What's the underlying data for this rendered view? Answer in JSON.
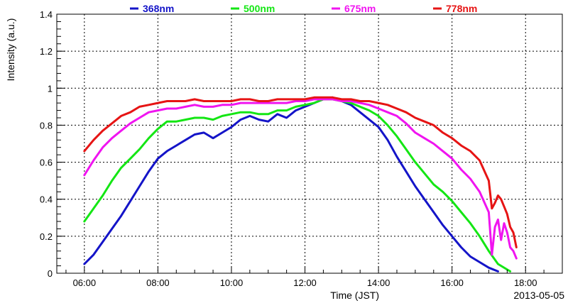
{
  "chart_data": {
    "type": "line",
    "xlabel": "Time (JST)",
    "ylabel": "Intensity (a.u.)",
    "date_label": "2013-05-05",
    "xlim": [
      "05:15",
      "19:00"
    ],
    "ylim": [
      0,
      1.4
    ],
    "x_ticks": [
      "06:00",
      "08:00",
      "10:00",
      "12:00",
      "14:00",
      "16:00",
      "18:00"
    ],
    "y_ticks": [
      "0",
      "0.2",
      "0.4",
      "0.6",
      "0.8",
      "1",
      "1.2",
      "1.4"
    ],
    "grid": true,
    "legend_position": "top",
    "series": [
      {
        "name": "368nm",
        "color": "#1414c8",
        "points": [
          [
            "06:00",
            0.05
          ],
          [
            "06:15",
            0.1
          ],
          [
            "06:30",
            0.17
          ],
          [
            "06:45",
            0.24
          ],
          [
            "07:00",
            0.31
          ],
          [
            "07:15",
            0.39
          ],
          [
            "07:30",
            0.47
          ],
          [
            "07:45",
            0.55
          ],
          [
            "08:00",
            0.62
          ],
          [
            "08:15",
            0.66
          ],
          [
            "08:30",
            0.69
          ],
          [
            "08:45",
            0.72
          ],
          [
            "09:00",
            0.75
          ],
          [
            "09:15",
            0.76
          ],
          [
            "09:30",
            0.73
          ],
          [
            "09:45",
            0.76
          ],
          [
            "10:00",
            0.79
          ],
          [
            "10:15",
            0.83
          ],
          [
            "10:30",
            0.85
          ],
          [
            "10:45",
            0.83
          ],
          [
            "11:00",
            0.82
          ],
          [
            "11:15",
            0.86
          ],
          [
            "11:30",
            0.84
          ],
          [
            "11:45",
            0.88
          ],
          [
            "12:00",
            0.9
          ],
          [
            "12:15",
            0.92
          ],
          [
            "12:30",
            0.94
          ],
          [
            "12:45",
            0.95
          ],
          [
            "13:00",
            0.93
          ],
          [
            "13:15",
            0.91
          ],
          [
            "13:30",
            0.87
          ],
          [
            "13:45",
            0.83
          ],
          [
            "14:00",
            0.79
          ],
          [
            "14:15",
            0.72
          ],
          [
            "14:30",
            0.63
          ],
          [
            "14:45",
            0.55
          ],
          [
            "15:00",
            0.47
          ],
          [
            "15:15",
            0.4
          ],
          [
            "15:30",
            0.33
          ],
          [
            "15:45",
            0.26
          ],
          [
            "16:00",
            0.2
          ],
          [
            "16:15",
            0.14
          ],
          [
            "16:30",
            0.09
          ],
          [
            "16:45",
            0.06
          ],
          [
            "17:00",
            0.03
          ],
          [
            "17:15",
            0.01
          ]
        ]
      },
      {
        "name": "500nm",
        "color": "#14e614",
        "points": [
          [
            "06:00",
            0.28
          ],
          [
            "06:15",
            0.35
          ],
          [
            "06:30",
            0.42
          ],
          [
            "06:45",
            0.5
          ],
          [
            "07:00",
            0.57
          ],
          [
            "07:15",
            0.62
          ],
          [
            "07:30",
            0.67
          ],
          [
            "07:45",
            0.73
          ],
          [
            "08:00",
            0.78
          ],
          [
            "08:15",
            0.82
          ],
          [
            "08:30",
            0.82
          ],
          [
            "08:45",
            0.83
          ],
          [
            "09:00",
            0.84
          ],
          [
            "09:15",
            0.84
          ],
          [
            "09:30",
            0.83
          ],
          [
            "09:45",
            0.85
          ],
          [
            "10:00",
            0.86
          ],
          [
            "10:15",
            0.87
          ],
          [
            "10:30",
            0.87
          ],
          [
            "10:45",
            0.86
          ],
          [
            "11:00",
            0.86
          ],
          [
            "11:15",
            0.88
          ],
          [
            "11:30",
            0.88
          ],
          [
            "11:45",
            0.9
          ],
          [
            "12:00",
            0.91
          ],
          [
            "12:15",
            0.92
          ],
          [
            "12:30",
            0.94
          ],
          [
            "12:45",
            0.94
          ],
          [
            "13:00",
            0.93
          ],
          [
            "13:15",
            0.92
          ],
          [
            "13:30",
            0.9
          ],
          [
            "13:45",
            0.88
          ],
          [
            "14:00",
            0.85
          ],
          [
            "14:15",
            0.8
          ],
          [
            "14:30",
            0.74
          ],
          [
            "14:45",
            0.67
          ],
          [
            "15:00",
            0.6
          ],
          [
            "15:15",
            0.54
          ],
          [
            "15:30",
            0.48
          ],
          [
            "15:45",
            0.44
          ],
          [
            "16:00",
            0.39
          ],
          [
            "16:15",
            0.33
          ],
          [
            "16:30",
            0.27
          ],
          [
            "16:45",
            0.2
          ],
          [
            "17:00",
            0.12
          ],
          [
            "17:15",
            0.05
          ],
          [
            "17:35",
            0.01
          ]
        ]
      },
      {
        "name": "675nm",
        "color": "#f014f0",
        "points": [
          [
            "06:00",
            0.53
          ],
          [
            "06:15",
            0.61
          ],
          [
            "06:30",
            0.68
          ],
          [
            "06:45",
            0.73
          ],
          [
            "07:00",
            0.77
          ],
          [
            "07:15",
            0.81
          ],
          [
            "07:30",
            0.84
          ],
          [
            "07:45",
            0.87
          ],
          [
            "08:00",
            0.88
          ],
          [
            "08:15",
            0.89
          ],
          [
            "08:30",
            0.89
          ],
          [
            "08:45",
            0.9
          ],
          [
            "09:00",
            0.91
          ],
          [
            "09:15",
            0.9
          ],
          [
            "09:30",
            0.9
          ],
          [
            "09:45",
            0.91
          ],
          [
            "10:00",
            0.91
          ],
          [
            "10:15",
            0.92
          ],
          [
            "10:30",
            0.92
          ],
          [
            "10:45",
            0.92
          ],
          [
            "11:00",
            0.92
          ],
          [
            "11:15",
            0.92
          ],
          [
            "11:30",
            0.92
          ],
          [
            "11:45",
            0.93
          ],
          [
            "12:00",
            0.93
          ],
          [
            "12:15",
            0.94
          ],
          [
            "12:30",
            0.94
          ],
          [
            "12:45",
            0.94
          ],
          [
            "13:00",
            0.93
          ],
          [
            "13:15",
            0.93
          ],
          [
            "13:30",
            0.92
          ],
          [
            "13:45",
            0.91
          ],
          [
            "14:00",
            0.89
          ],
          [
            "14:15",
            0.87
          ],
          [
            "14:30",
            0.85
          ],
          [
            "14:45",
            0.81
          ],
          [
            "15:00",
            0.76
          ],
          [
            "15:15",
            0.73
          ],
          [
            "15:30",
            0.7
          ],
          [
            "15:45",
            0.66
          ],
          [
            "16:00",
            0.62
          ],
          [
            "16:15",
            0.56
          ],
          [
            "16:30",
            0.51
          ],
          [
            "16:45",
            0.44
          ],
          [
            "17:00",
            0.33
          ],
          [
            "17:05",
            0.1
          ],
          [
            "17:10",
            0.25
          ],
          [
            "17:15",
            0.29
          ],
          [
            "17:20",
            0.18
          ],
          [
            "17:25",
            0.27
          ],
          [
            "17:30",
            0.22
          ],
          [
            "17:35",
            0.14
          ],
          [
            "17:40",
            0.12
          ],
          [
            "17:45",
            0.08
          ]
        ]
      },
      {
        "name": "778nm",
        "color": "#e61414",
        "points": [
          [
            "06:00",
            0.66
          ],
          [
            "06:15",
            0.72
          ],
          [
            "06:30",
            0.77
          ],
          [
            "06:45",
            0.81
          ],
          [
            "07:00",
            0.85
          ],
          [
            "07:15",
            0.87
          ],
          [
            "07:30",
            0.9
          ],
          [
            "07:45",
            0.91
          ],
          [
            "08:00",
            0.92
          ],
          [
            "08:15",
            0.93
          ],
          [
            "08:30",
            0.93
          ],
          [
            "08:45",
            0.93
          ],
          [
            "09:00",
            0.94
          ],
          [
            "09:15",
            0.93
          ],
          [
            "09:30",
            0.93
          ],
          [
            "09:45",
            0.93
          ],
          [
            "10:00",
            0.93
          ],
          [
            "10:15",
            0.94
          ],
          [
            "10:30",
            0.94
          ],
          [
            "10:45",
            0.93
          ],
          [
            "11:00",
            0.93
          ],
          [
            "11:15",
            0.94
          ],
          [
            "11:30",
            0.94
          ],
          [
            "11:45",
            0.94
          ],
          [
            "12:00",
            0.94
          ],
          [
            "12:15",
            0.95
          ],
          [
            "12:30",
            0.95
          ],
          [
            "12:45",
            0.95
          ],
          [
            "13:00",
            0.94
          ],
          [
            "13:15",
            0.94
          ],
          [
            "13:30",
            0.93
          ],
          [
            "13:45",
            0.93
          ],
          [
            "14:00",
            0.92
          ],
          [
            "14:15",
            0.91
          ],
          [
            "14:30",
            0.89
          ],
          [
            "14:45",
            0.87
          ],
          [
            "15:00",
            0.84
          ],
          [
            "15:15",
            0.82
          ],
          [
            "15:30",
            0.8
          ],
          [
            "15:45",
            0.76
          ],
          [
            "16:00",
            0.73
          ],
          [
            "16:15",
            0.69
          ],
          [
            "16:30",
            0.66
          ],
          [
            "16:45",
            0.61
          ],
          [
            "17:00",
            0.5
          ],
          [
            "17:05",
            0.35
          ],
          [
            "17:10",
            0.38
          ],
          [
            "17:15",
            0.42
          ],
          [
            "17:20",
            0.4
          ],
          [
            "17:25",
            0.36
          ],
          [
            "17:30",
            0.32
          ],
          [
            "17:35",
            0.25
          ],
          [
            "17:40",
            0.22
          ],
          [
            "17:45",
            0.14
          ]
        ]
      }
    ]
  }
}
